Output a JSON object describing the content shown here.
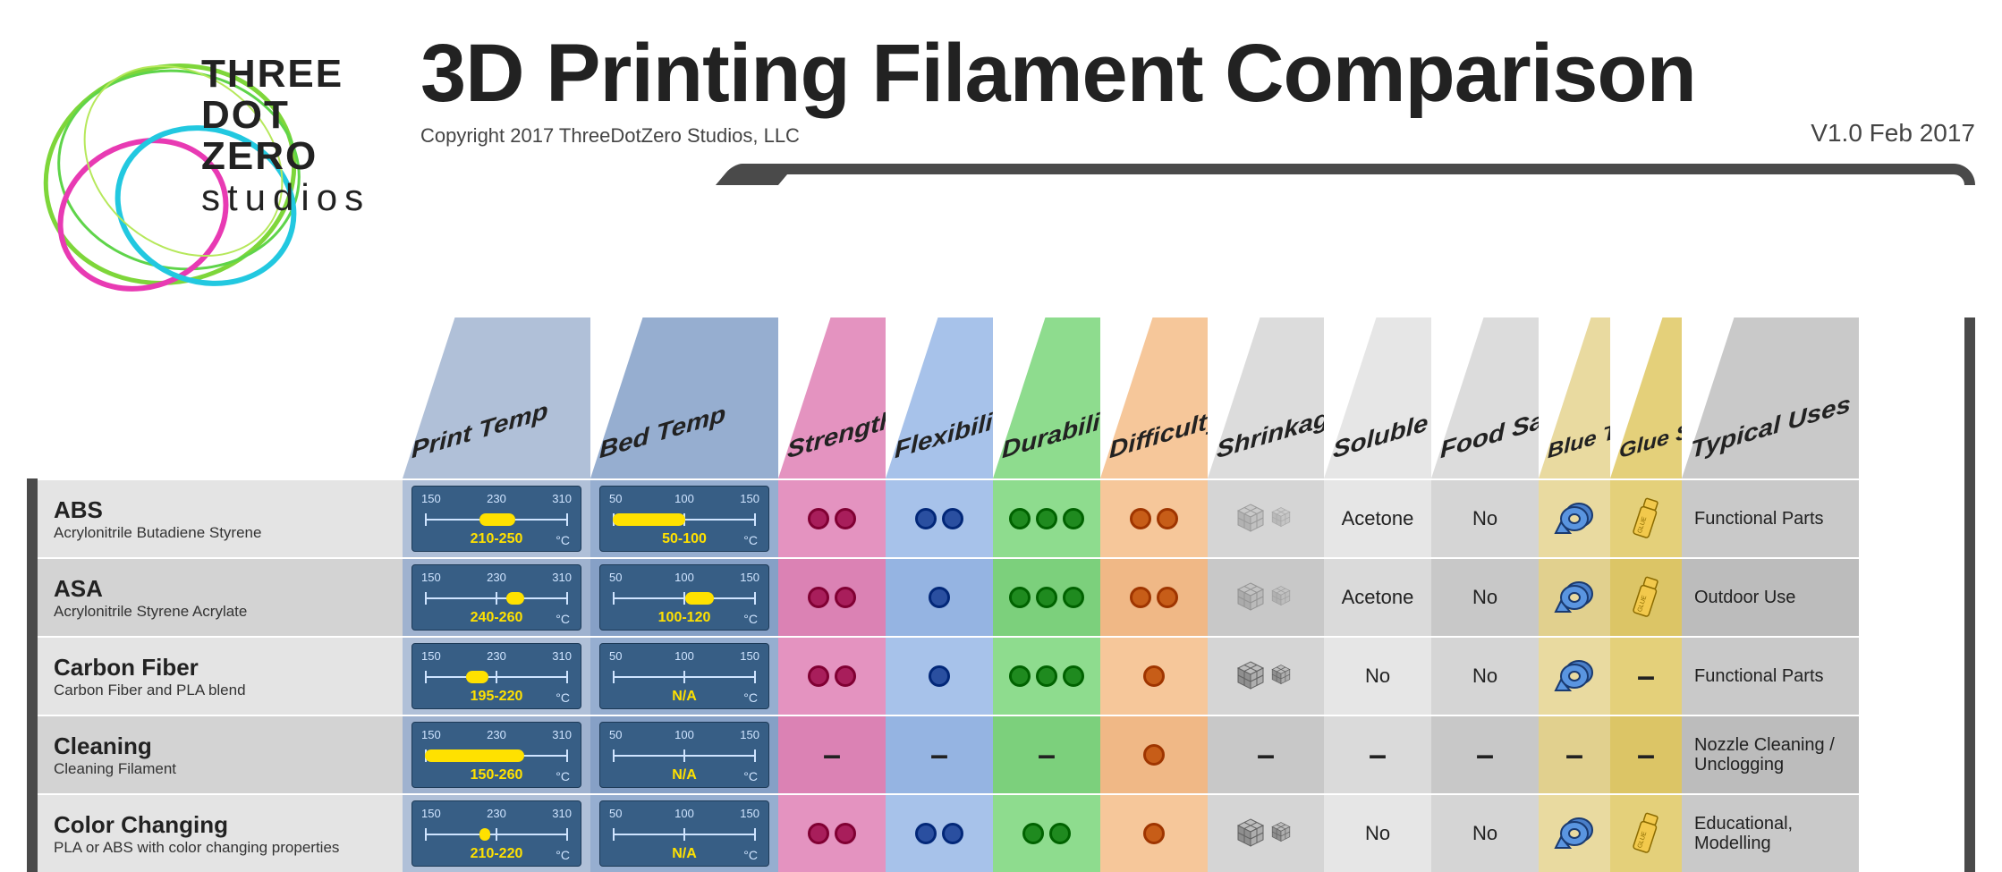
{
  "brand": {
    "l1": "THREE",
    "l2": "DOT",
    "l3": "ZERO",
    "l4": "studios"
  },
  "title": "3D Printing Filament Comparison",
  "copyright": "Copyright 2017 ThreeDotZero Studios, LLC",
  "version": "V1.0 Feb 2017",
  "palette": {
    "frame": "#4a4a4a",
    "tempBg": "#375e85",
    "tempRange": "#ffe100",
    "headers": {
      "name": "#ffffff",
      "printTemp": "#b0c0d8",
      "bedTemp": "#96aed0",
      "strength": "#e493c0",
      "flexibility": "#a7c2ea",
      "durability": "#8edc8e",
      "difficulty": "#f6c79a",
      "shrinkage": "#dcdcdc",
      "soluble": "#e6e6e6",
      "foodSafe": "#dcdcdc",
      "blueTape": "#e9daa0",
      "glueStick": "#e4d07a",
      "typical": "#c9c9c9"
    },
    "cols": {
      "name": "#e4e4e4",
      "printTemp": "#b0c0d8",
      "bedTemp": "#96aed0",
      "strength": "#e493c0",
      "flexibility": "#a7c2ea",
      "durability": "#8edc8e",
      "difficulty": "#f6c79a",
      "shrinkage": "#d5d5d5",
      "soluble": "#e6e6e6",
      "foodSafe": "#d5d5d5",
      "blueTape": "#e9daa0",
      "glueStick": "#e4d07a",
      "typical": "#c9c9c9"
    },
    "cols_alt": {
      "name": "#d3d3d3",
      "printTemp": "#9fb2cf",
      "bedTemp": "#86a0c6",
      "strength": "#db82b4",
      "flexibility": "#95b4e2",
      "durability": "#7cd07c",
      "difficulty": "#f0b886",
      "shrinkage": "#c8c8c8",
      "soluble": "#dadada",
      "foodSafe": "#c8c8c8",
      "blueTape": "#e1d08e",
      "glueStick": "#dcc566",
      "typical": "#bcbcbc"
    },
    "dots": {
      "strength": "#a81e5b",
      "flexibility": "#2a4fa0",
      "durability": "#1f8a1f",
      "difficulty": "#c75d18"
    }
  },
  "columns": [
    {
      "key": "name",
      "label": ""
    },
    {
      "key": "printTemp",
      "label": "Print Temp"
    },
    {
      "key": "bedTemp",
      "label": "Bed Temp"
    },
    {
      "key": "strength",
      "label": "Strength"
    },
    {
      "key": "flexibility",
      "label": "Flexibility"
    },
    {
      "key": "durability",
      "label": "Durability"
    },
    {
      "key": "difficulty",
      "label": "Difficulty"
    },
    {
      "key": "shrinkage",
      "label": "Shrinkage"
    },
    {
      "key": "soluble",
      "label": "Soluble"
    },
    {
      "key": "foodSafe",
      "label": "Food Safe*"
    },
    {
      "key": "blueTape",
      "label": "Blue Tape",
      "small": true
    },
    {
      "key": "glueStick",
      "label": "Glue Stick",
      "small": true
    },
    {
      "key": "typical",
      "label": "Typical Uses"
    }
  ],
  "tempAxes": {
    "print": {
      "min": 150,
      "mid": 230,
      "max": 310
    },
    "bed": {
      "min": 50,
      "mid": 100,
      "max": 150
    }
  },
  "rows": [
    {
      "name": "ABS",
      "sub": "Acrylonitrile Butadiene Styrene",
      "print": {
        "lo": 210,
        "hi": 250,
        "text": "210-250"
      },
      "bed": {
        "lo": 50,
        "hi": 100,
        "text": "50-100"
      },
      "strength": 2,
      "flexibility": 2,
      "durability": 3,
      "difficulty": 2,
      "shrinkage": "low",
      "soluble": "Acetone",
      "foodSafe": "No",
      "blueTape": true,
      "glueStick": true,
      "uses": "Functional Parts"
    },
    {
      "name": "ASA",
      "sub": "Acrylonitrile Styrene Acrylate",
      "print": {
        "lo": 240,
        "hi": 260,
        "text": "240-260"
      },
      "bed": {
        "lo": 100,
        "hi": 120,
        "text": "100-120"
      },
      "strength": 2,
      "flexibility": 1,
      "durability": 3,
      "difficulty": 2,
      "shrinkage": "low",
      "soluble": "Acetone",
      "foodSafe": "No",
      "blueTape": true,
      "glueStick": true,
      "uses": "Outdoor Use"
    },
    {
      "name": "Carbon Fiber",
      "sub": "Carbon Fiber and PLA blend",
      "print": {
        "lo": 195,
        "hi": 220,
        "text": "195-220"
      },
      "bed": {
        "na": true,
        "text": "N/A"
      },
      "strength": 2,
      "flexibility": 1,
      "durability": 3,
      "difficulty": 1,
      "shrinkage": "high",
      "soluble": "No",
      "foodSafe": "No",
      "blueTape": true,
      "glueStick": "dash",
      "uses": "Functional Parts"
    },
    {
      "name": "Cleaning",
      "sub": "Cleaning Filament",
      "print": {
        "lo": 150,
        "hi": 260,
        "text": "150-260"
      },
      "bed": {
        "na": true,
        "text": "N/A"
      },
      "strength": "dash",
      "flexibility": "dash",
      "durability": "dash",
      "difficulty": 1,
      "shrinkage": "dash",
      "soluble": "dash",
      "foodSafe": "dash",
      "blueTape": "dash",
      "glueStick": "dash",
      "uses": "Nozzle Cleaning / Unclogging"
    },
    {
      "name": "Color Changing",
      "sub": "PLA or ABS with color changing properties",
      "print": {
        "lo": 210,
        "hi": 220,
        "text": "210-220"
      },
      "bed": {
        "na": true,
        "text": "N/A"
      },
      "strength": 2,
      "flexibility": 2,
      "durability": 2,
      "difficulty": 1,
      "shrinkage": "high",
      "soluble": "No",
      "foodSafe": "No",
      "blueTape": true,
      "glueStick": true,
      "uses": "Educational, Modelling"
    }
  ]
}
